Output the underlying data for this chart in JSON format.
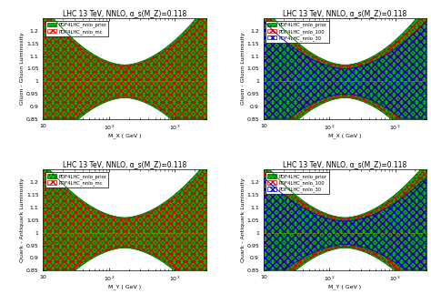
{
  "subplots": [
    {
      "title": "LHC 13 TeV, NNLO, α_s(M_Z)=0.118",
      "ylabel": "Gluon - Gluon Luminosity",
      "xlabel": "M_X ( GeV )",
      "legend": [
        "PDF4LHC_nnlo_prior",
        "PDF4LHC_nnlo_mc"
      ],
      "type": "gg_left"
    },
    {
      "title": "LHC 13 TeV, NNLO, α_s(M_Z)=0.118",
      "ylabel": "Gluon - Gluon Luminosity",
      "xlabel": "M_X ( GeV )",
      "legend": [
        "PDF4LHC_nnlo_prior",
        "PDF4LHC_nnlo_100",
        "PDF4LHC_nnlo_30"
      ],
      "type": "gg_right"
    },
    {
      "title": "LHC 13 TeV, NNLO, α_s(M_Z)=0.118",
      "ylabel": "Quark - Antiquark Luminosity",
      "xlabel": "M_Y ( GeV )",
      "legend": [
        "PDF4LHC_nnlo_prior",
        "PDF4LHC_nnlo_mc"
      ],
      "type": "qq_left"
    },
    {
      "title": "LHC 13 TeV, NNLO, α_s(M_Z)=0.118",
      "ylabel": "Quark - Antiquark Luminosity",
      "xlabel": "M_Y ( GeV )",
      "legend": [
        "PDF4LHC_nnlo_prior",
        "PDF4LHC_nnlo_100",
        "PDF4LHC_nnlo_30"
      ],
      "type": "qq_right"
    }
  ],
  "green_color": "#00bb00",
  "red_color": "#dd0000",
  "blue_color": "#0000cc",
  "ylim": [
    0.85,
    1.25
  ],
  "xlim_log": [
    1,
    3.477
  ],
  "yticks": [
    0.85,
    0.9,
    0.95,
    1.0,
    1.05,
    1.1,
    1.15,
    1.2
  ],
  "yticklabels": [
    "0.85",
    "0.9",
    "0.95",
    "1",
    "1.05",
    "1.1",
    "1.15",
    "1.2"
  ],
  "xticks": [
    10,
    100,
    1000
  ],
  "xticklabels": [
    "10",
    "10$^2$",
    "10$^3$"
  ]
}
